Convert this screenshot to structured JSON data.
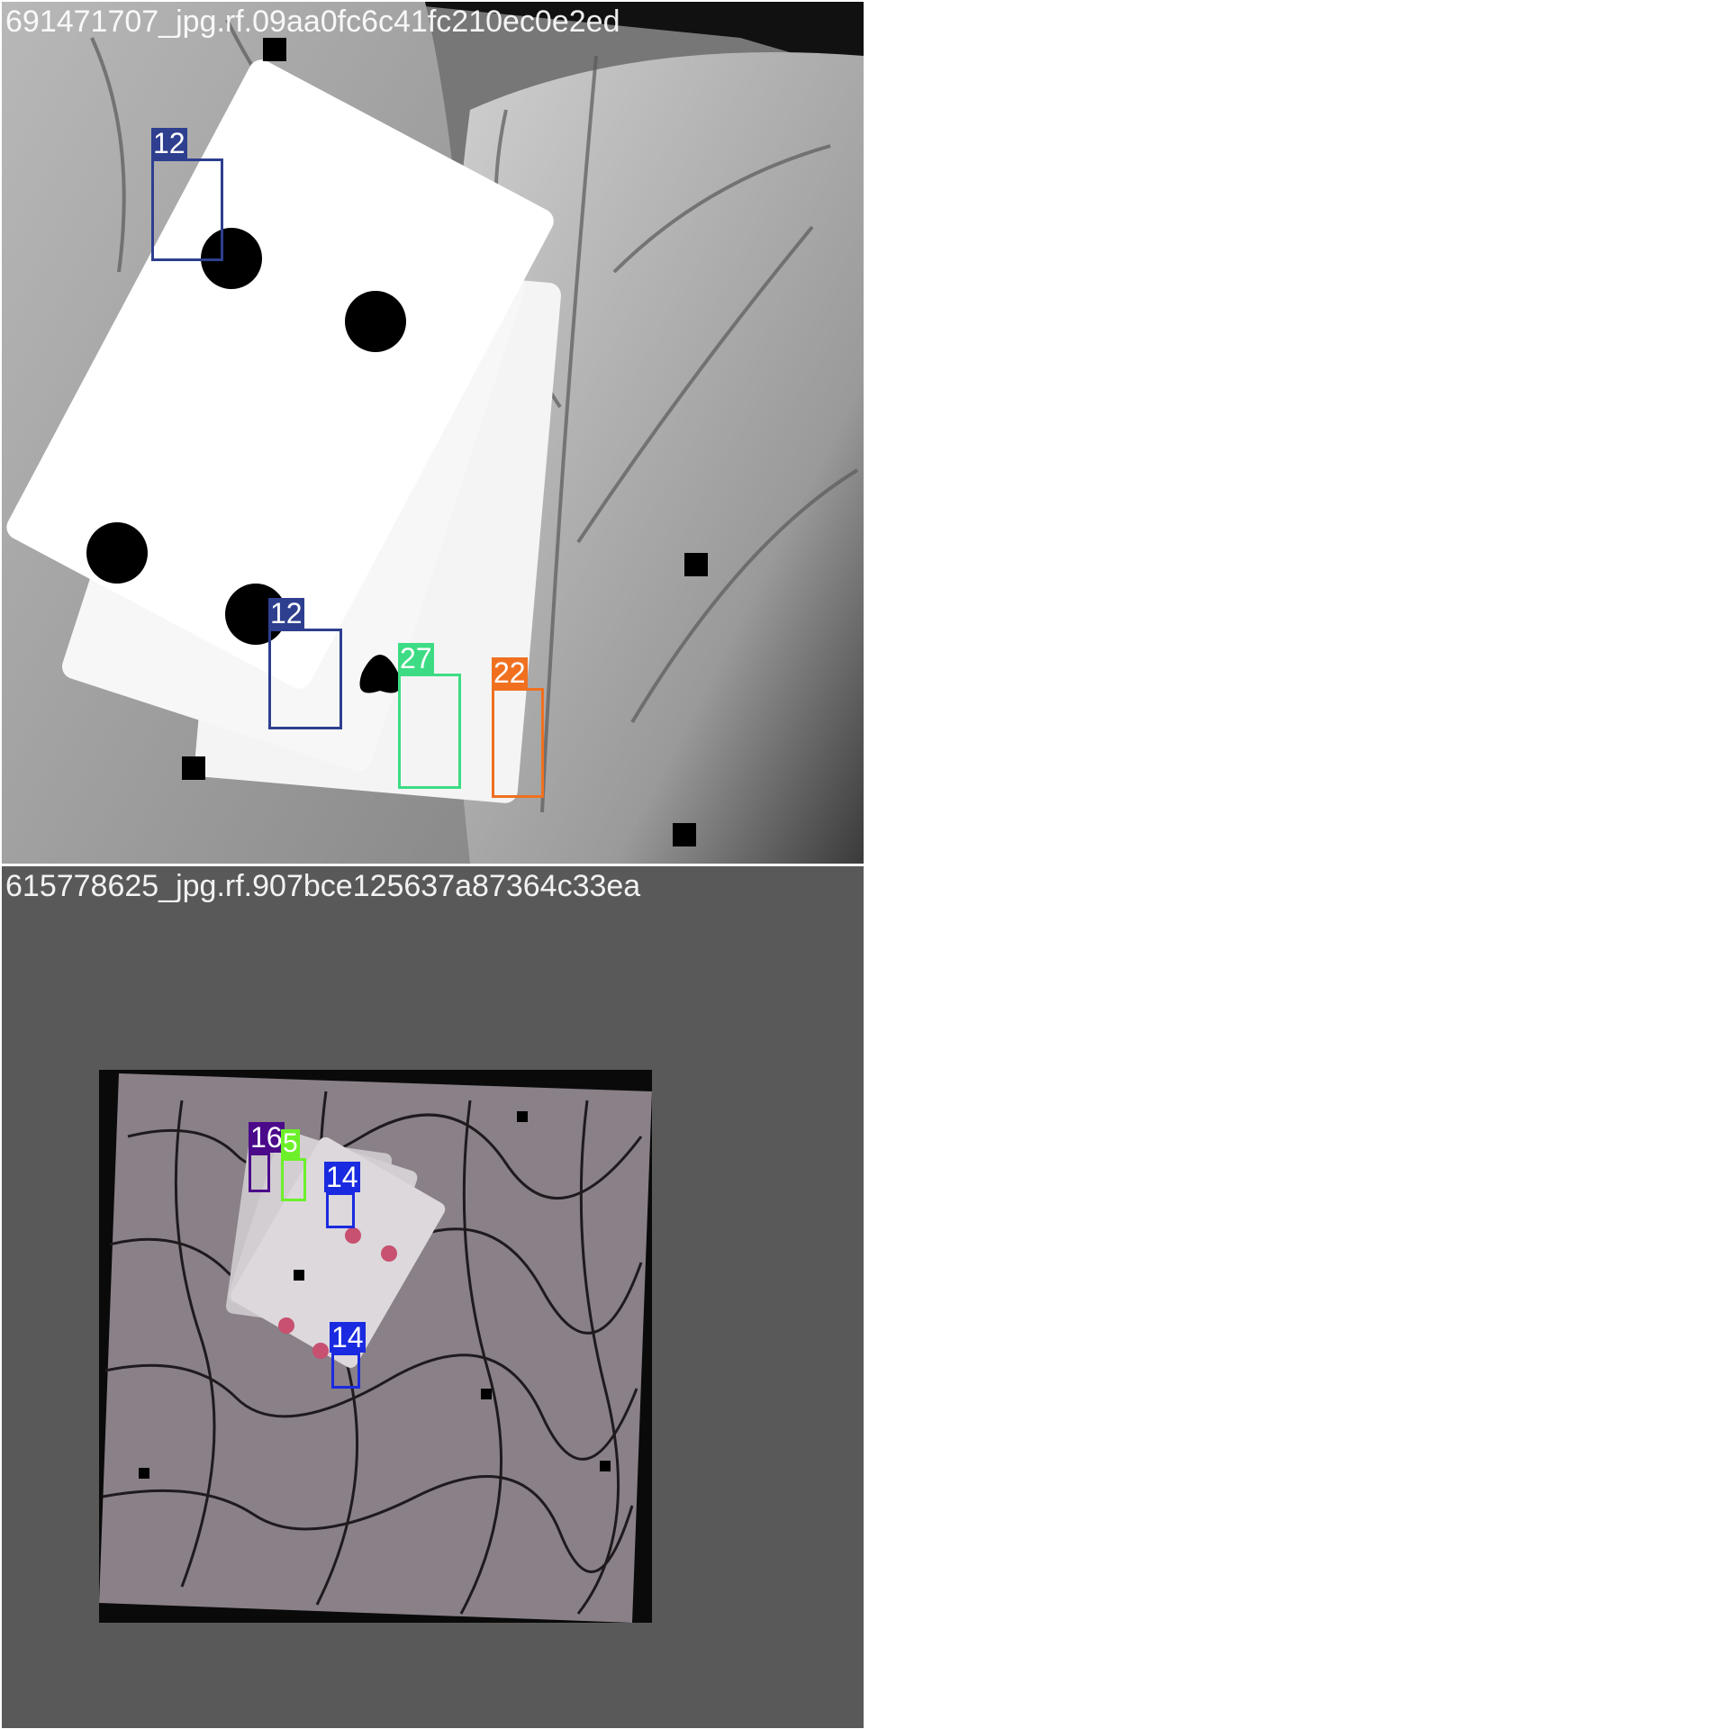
{
  "colors": {
    "class_12": "#2e3f8f",
    "class_27": "#3ddc84",
    "class_22": "#f07020",
    "class_16": "#4b0a8a",
    "class_5": "#6cf02a",
    "class_14": "#1a2ae0"
  },
  "tiles": [
    {
      "filename": "691471707_jpg.rf.09aa0fc6c41fc210ec0e2ed",
      "detections": [
        {
          "label": "12"
        },
        {
          "label": "12"
        },
        {
          "label": "27"
        },
        {
          "label": "22"
        }
      ]
    },
    {
      "filename": "615778625_jpg.rf.907bce125637a87364c33ea",
      "detections": [
        {
          "label": "16"
        },
        {
          "label": "5"
        },
        {
          "label": "14"
        },
        {
          "label": "14"
        }
      ]
    }
  ]
}
